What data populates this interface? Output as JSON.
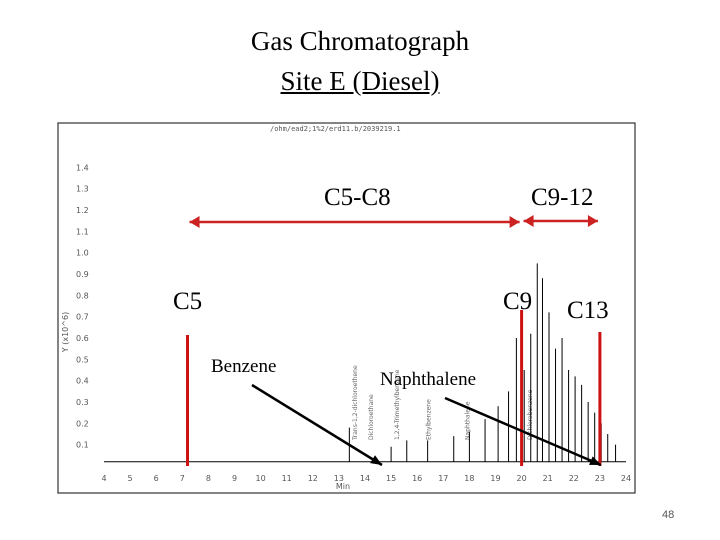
{
  "slide": {
    "title_line1": "Gas Chromatograph",
    "title_line2": "Site E (Diesel)",
    "page_number": "48"
  },
  "chart_data": {
    "type": "line",
    "file_header": "/ohm/ead2;1%2/erd11.b/2039219.1",
    "y_axis_label": "Y (x10^6)",
    "x_axis_label": "Min",
    "x_ticks": [
      "4",
      "5",
      "6",
      "7",
      "8",
      "9",
      "10",
      "11",
      "12",
      "13",
      "14",
      "15",
      "16",
      "17",
      "18",
      "19",
      "20",
      "21",
      "22",
      "23",
      "24"
    ],
    "y_ticks": [
      "0.1",
      "0.2",
      "0.3",
      "0.4",
      "0.5",
      "0.6",
      "0.7",
      "0.8",
      "0.9",
      "1.0",
      "1.1",
      "1.2",
      "1.3",
      "1.4"
    ],
    "xlim": [
      4,
      24
    ],
    "ylim": [
      0,
      1.5
    ],
    "peaks": [
      {
        "x": 13.4,
        "y": 0.18
      },
      {
        "x": 15.0,
        "y": 0.09
      },
      {
        "x": 15.6,
        "y": 0.12
      },
      {
        "x": 16.4,
        "y": 0.12
      },
      {
        "x": 17.4,
        "y": 0.14
      },
      {
        "x": 18.0,
        "y": 0.16
      },
      {
        "x": 18.6,
        "y": 0.22
      },
      {
        "x": 19.1,
        "y": 0.28
      },
      {
        "x": 19.5,
        "y": 0.35
      },
      {
        "x": 19.8,
        "y": 0.6
      },
      {
        "x": 20.1,
        "y": 0.45
      },
      {
        "x": 20.35,
        "y": 0.62
      },
      {
        "x": 20.6,
        "y": 0.95
      },
      {
        "x": 20.8,
        "y": 0.88
      },
      {
        "x": 21.05,
        "y": 0.72
      },
      {
        "x": 21.3,
        "y": 0.55
      },
      {
        "x": 21.55,
        "y": 0.6
      },
      {
        "x": 21.8,
        "y": 0.45
      },
      {
        "x": 22.05,
        "y": 0.42
      },
      {
        "x": 22.3,
        "y": 0.38
      },
      {
        "x": 22.55,
        "y": 0.3
      },
      {
        "x": 22.8,
        "y": 0.25
      },
      {
        "x": 23.05,
        "y": 0.2
      },
      {
        "x": 23.3,
        "y": 0.15
      },
      {
        "x": 23.6,
        "y": 0.1
      }
    ],
    "peak_labels": [
      {
        "x": 13.7,
        "text": "Trans-1,2-dichloroethene"
      },
      {
        "x": 14.3,
        "text": "Dichloroethane"
      },
      {
        "x": 15.3,
        "text": "1,2,4-Trimethylbenzene"
      },
      {
        "x": 16.5,
        "text": "Ethylbenzene"
      },
      {
        "x": 18.0,
        "text": "Naphthalene"
      },
      {
        "x": 20.4,
        "text": "Dichlorobenzene"
      }
    ],
    "annotations": {
      "range_c5_c8": "C5-C8",
      "range_c9_12": "C9-12",
      "c5": "C5",
      "c9": "C9",
      "c13": "C13",
      "benzene": "Benzene",
      "naphthalene": "Naphthalene"
    },
    "markers_x": {
      "c5": 7.2,
      "c9": 20.0,
      "c13": 23.0
    },
    "range_arrows": [
      {
        "name": "C5-C8",
        "from": 7.2,
        "to": 20.0
      },
      {
        "name": "C9-12",
        "from": 20.0,
        "to": 23.0
      }
    ],
    "colors": {
      "marker": "#cc1111",
      "arrow": "#cc2222",
      "pointer": "#000000",
      "trace": "#000000"
    }
  }
}
